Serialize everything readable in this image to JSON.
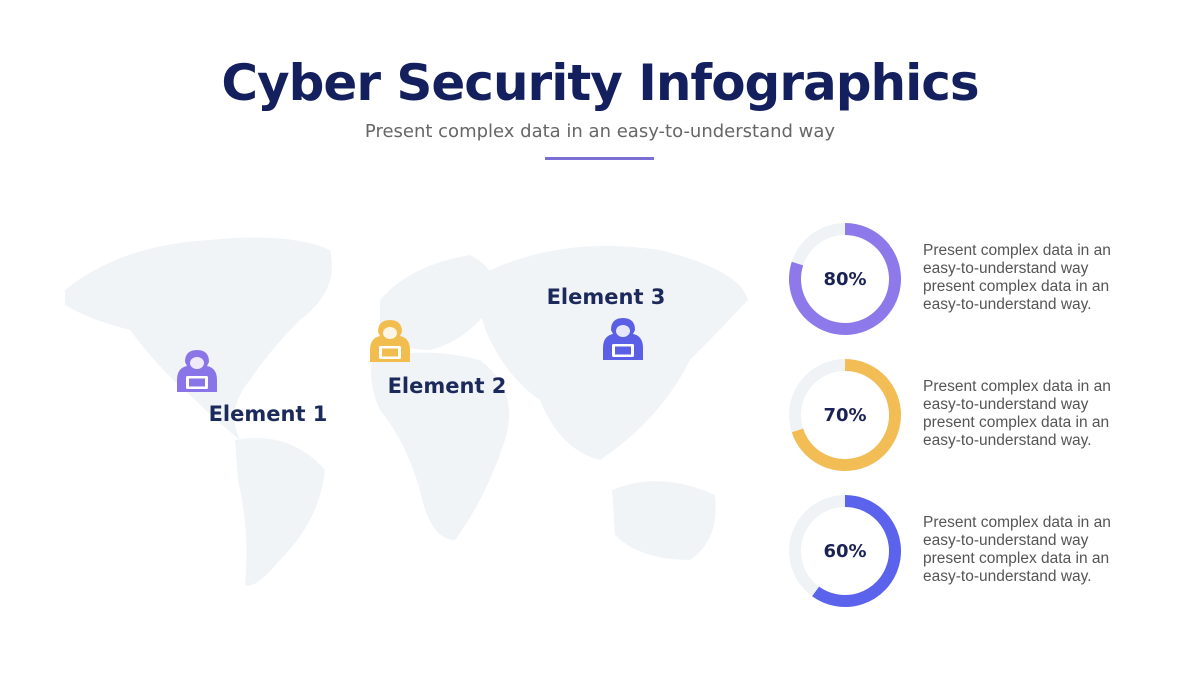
{
  "header": {
    "title": "Cyber Security Infographics",
    "subtitle": "Present complex data in an easy-to-understand way",
    "accent_color": "#7b6fd6"
  },
  "map": {
    "markers": [
      {
        "label": "Element 1",
        "color": "#8a75e8"
      },
      {
        "label": "Element 2",
        "color": "#f2bd4f"
      },
      {
        "label": "Element 3",
        "color": "#5a5fe6"
      }
    ]
  },
  "donuts": [
    {
      "value": 80,
      "label": "80%",
      "color": "#8e79ea",
      "text": "Present complex data in an easy-to-understand way present complex data in an easy-to-understand way."
    },
    {
      "value": 70,
      "label": "70%",
      "color": "#f2bd55",
      "text": "Present complex data in an easy-to-understand way present complex data in an easy-to-understand way."
    },
    {
      "value": 60,
      "label": "60%",
      "color": "#5b63ec",
      "text": "Present complex data in an easy-to-understand way present complex data in an easy-to-understand way."
    }
  ]
}
